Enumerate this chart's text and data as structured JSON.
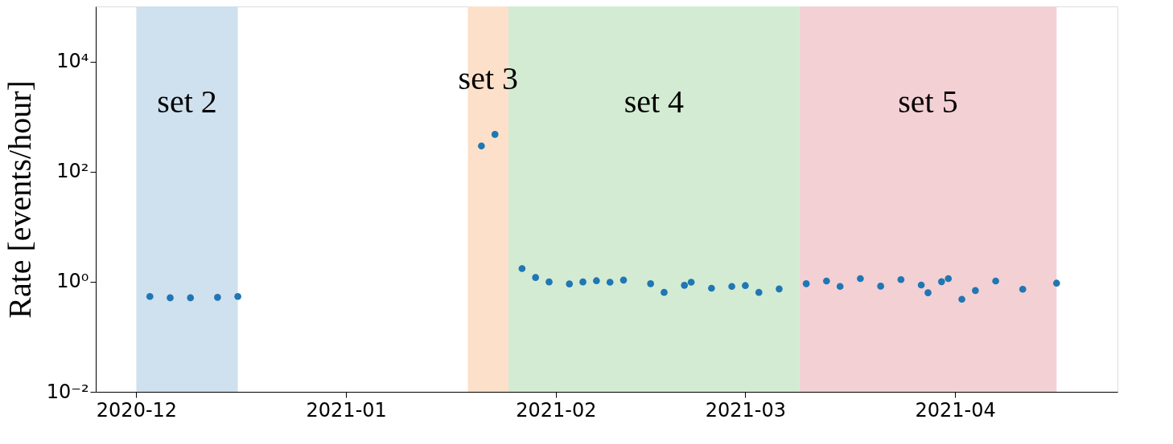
{
  "chart_data": {
    "type": "scatter",
    "ylabel": "Rate [events/hour]",
    "log": "y",
    "grid": false,
    "marker": "circle",
    "xlim": [
      "2020-11-25",
      "2021-04-25"
    ],
    "xticks": [
      {
        "value": "2020-12-01",
        "label": "2020-12"
      },
      {
        "value": "2021-01-01",
        "label": "2021-01"
      },
      {
        "value": "2021-02-01",
        "label": "2021-02"
      },
      {
        "value": "2021-03-01",
        "label": "2021-03"
      },
      {
        "value": "2021-04-01",
        "label": "2021-04"
      }
    ],
    "ylim": [
      0.01,
      100000
    ],
    "yticks": [
      {
        "value": 0.01,
        "label": "10⁻²"
      },
      {
        "value": 1,
        "label": "10⁰"
      },
      {
        "value": 100,
        "label": "10²"
      },
      {
        "value": 10000,
        "label": "10⁴"
      }
    ],
    "bands": [
      {
        "axis": "x",
        "from": "2020-12-01",
        "to": "2020-12-16",
        "label": "set 2",
        "color": "#cfe0ee"
      },
      {
        "axis": "x",
        "from": "2021-01-19",
        "to": "2021-01-25",
        "label": "set 3",
        "color": "#fde0c9"
      },
      {
        "axis": "x",
        "from": "2021-01-25",
        "to": "2021-03-09",
        "label": "set 4",
        "color": "#d3ebd3"
      },
      {
        "axis": "x",
        "from": "2021-03-09",
        "to": "2021-04-16",
        "label": "set 5",
        "color": "#f3d0d4"
      }
    ],
    "series": [
      {
        "color": "#1f77b4",
        "x": [
          "2020-12-03",
          "2020-12-06",
          "2020-12-09",
          "2020-12-13",
          "2020-12-16",
          "2021-01-21",
          "2021-01-23",
          "2021-01-27",
          "2021-01-29",
          "2021-01-31",
          "2021-02-03",
          "2021-02-05",
          "2021-02-07",
          "2021-02-09",
          "2021-02-11",
          "2021-02-15",
          "2021-02-17",
          "2021-02-20",
          "2021-02-21",
          "2021-02-24",
          "2021-02-27",
          "2021-03-01",
          "2021-03-03",
          "2021-03-06",
          "2021-03-10",
          "2021-03-13",
          "2021-03-15",
          "2021-03-18",
          "2021-03-21",
          "2021-03-24",
          "2021-03-27",
          "2021-03-28",
          "2021-03-30",
          "2021-03-31",
          "2021-04-02",
          "2021-04-04",
          "2021-04-07",
          "2021-04-11",
          "2021-04-16"
        ],
        "values": [
          0.54,
          0.51,
          0.51,
          0.52,
          0.54,
          292,
          474,
          1.73,
          1.19,
          0.99,
          0.91,
          0.99,
          1.04,
          0.98,
          1.07,
          0.92,
          0.64,
          0.86,
          0.98,
          0.76,
          0.82,
          0.85,
          0.64,
          0.74,
          0.92,
          1.03,
          0.82,
          1.14,
          0.83,
          1.09,
          0.87,
          0.63,
          1.0,
          1.14,
          0.48,
          0.69,
          1.03,
          0.73,
          0.94
        ]
      }
    ]
  }
}
